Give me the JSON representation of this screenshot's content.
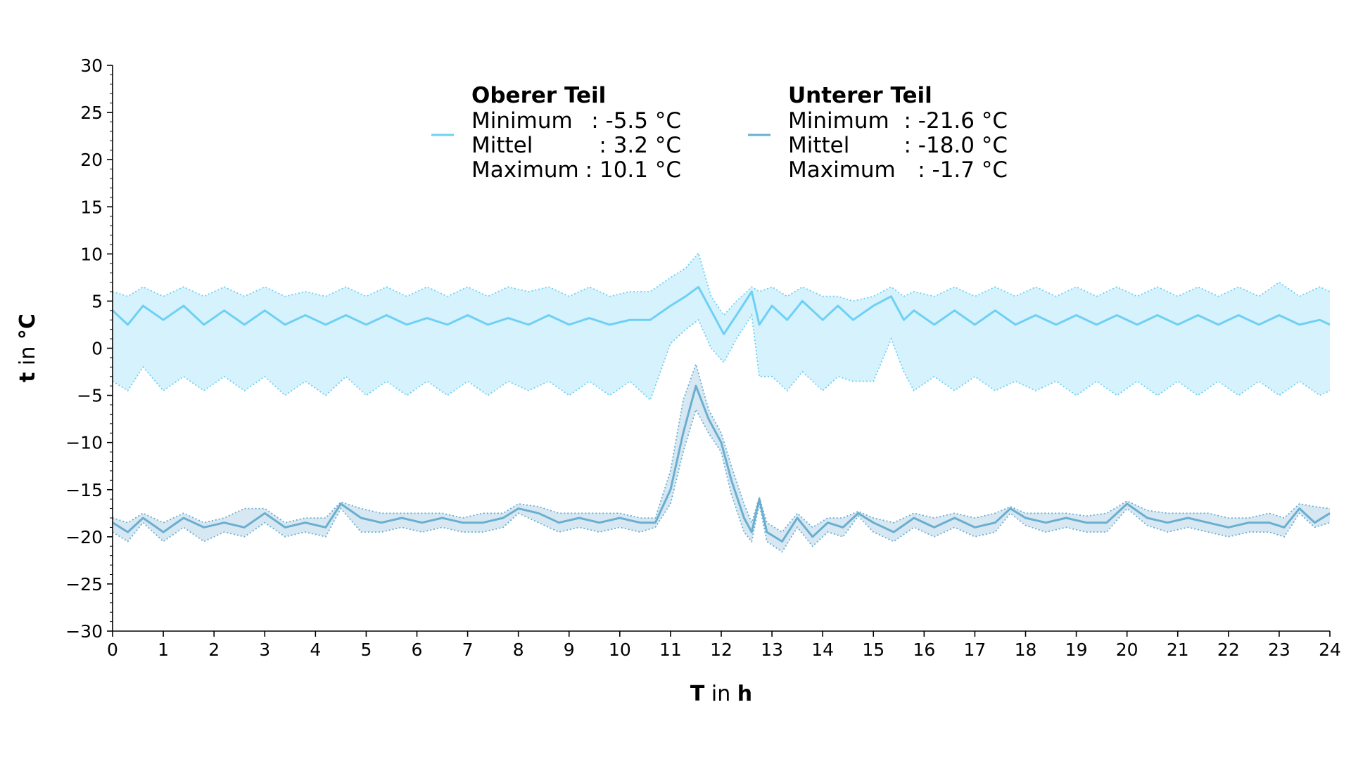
{
  "chart_data": {
    "type": "line",
    "xlabel_bold": "T",
    "xlabel_mid": " in ",
    "xlabel_unit": "h",
    "ylabel_bold": "t",
    "ylabel_mid": " in ",
    "ylabel_unit": "°C",
    "xlim": [
      0,
      24
    ],
    "ylim": [
      -30,
      30
    ],
    "x_ticks": [
      0,
      1,
      2,
      3,
      4,
      5,
      6,
      7,
      8,
      9,
      10,
      11,
      12,
      13,
      14,
      15,
      16,
      17,
      18,
      19,
      20,
      21,
      22,
      23,
      24
    ],
    "y_ticks": [
      30,
      25,
      20,
      15,
      10,
      5,
      0,
      -5,
      -10,
      -15,
      -20,
      -25,
      -30
    ],
    "y_tick_labels": [
      "30",
      "25",
      "20",
      "15",
      "10",
      "5",
      "0",
      "−5",
      "−10",
      "−15",
      "−20",
      "−25",
      "−30"
    ],
    "grid": false,
    "legend_placement": "top-center",
    "series": [
      {
        "name": "Oberer Teil",
        "color": "#6ed0f5",
        "band_color": "#d6f2fc",
        "stats": [
          {
            "label": "Minimum",
            "value": ": -5.5 °C"
          },
          {
            "label": "Mittel",
            "value": ": 3.2 °C"
          },
          {
            "label": "Maximum",
            "value": ": 10.1 °C"
          }
        ],
        "x": [
          0,
          0.3,
          0.6,
          1.0,
          1.4,
          1.8,
          2.2,
          2.6,
          3.0,
          3.4,
          3.8,
          4.2,
          4.6,
          5.0,
          5.4,
          5.8,
          6.2,
          6.6,
          7.0,
          7.4,
          7.8,
          8.2,
          8.6,
          9.0,
          9.4,
          9.8,
          10.2,
          10.6,
          11.0,
          11.3,
          11.55,
          11.8,
          12.05,
          12.3,
          12.6,
          12.75,
          13.0,
          13.3,
          13.6,
          14.0,
          14.3,
          14.6,
          15.0,
          15.35,
          15.6,
          15.8,
          16.2,
          16.6,
          17.0,
          17.4,
          17.8,
          18.2,
          18.6,
          19.0,
          19.4,
          19.8,
          20.2,
          20.6,
          21.0,
          21.4,
          21.8,
          22.2,
          22.6,
          23.0,
          23.4,
          23.8,
          24.0
        ],
        "mean": [
          4.0,
          2.5,
          4.5,
          3.0,
          4.5,
          2.5,
          4.0,
          2.5,
          4.0,
          2.5,
          3.5,
          2.5,
          3.5,
          2.5,
          3.5,
          2.5,
          3.2,
          2.5,
          3.5,
          2.5,
          3.2,
          2.5,
          3.5,
          2.5,
          3.2,
          2.5,
          3.0,
          3.0,
          4.5,
          5.5,
          6.5,
          4.0,
          1.5,
          3.5,
          6.0,
          2.5,
          4.5,
          3.0,
          5.0,
          3.0,
          4.5,
          3.0,
          4.5,
          5.5,
          3.0,
          4.0,
          2.5,
          4.0,
          2.5,
          4.0,
          2.5,
          3.5,
          2.5,
          3.5,
          2.5,
          3.5,
          2.5,
          3.5,
          2.5,
          3.5,
          2.5,
          3.5,
          2.5,
          3.5,
          2.5,
          3.0,
          2.5
        ],
        "max": [
          6.0,
          5.5,
          6.5,
          5.5,
          6.5,
          5.5,
          6.5,
          5.5,
          6.5,
          5.5,
          6.0,
          5.5,
          6.5,
          5.5,
          6.5,
          5.5,
          6.5,
          5.5,
          6.5,
          5.5,
          6.5,
          6.0,
          6.5,
          5.5,
          6.5,
          5.5,
          6.0,
          6.0,
          7.5,
          8.5,
          10.1,
          5.5,
          3.5,
          5.0,
          6.5,
          6.0,
          6.5,
          5.5,
          6.5,
          5.5,
          5.5,
          5.0,
          5.5,
          6.5,
          5.5,
          6.0,
          5.5,
          6.5,
          5.5,
          6.5,
          5.5,
          6.5,
          5.5,
          6.5,
          5.5,
          6.5,
          5.5,
          6.5,
          5.5,
          6.5,
          5.5,
          6.5,
          5.5,
          7.0,
          5.5,
          6.5,
          6.0
        ],
        "min": [
          -3.5,
          -4.5,
          -2.0,
          -4.5,
          -3.0,
          -4.5,
          -3.0,
          -4.5,
          -3.0,
          -5.0,
          -3.5,
          -5.0,
          -3.0,
          -5.0,
          -3.5,
          -5.0,
          -3.5,
          -5.0,
          -3.5,
          -5.0,
          -3.5,
          -4.5,
          -3.5,
          -5.0,
          -3.5,
          -5.0,
          -3.5,
          -5.5,
          0.5,
          2.0,
          3.0,
          0.0,
          -1.5,
          1.0,
          3.5,
          -3.0,
          -3.0,
          -4.5,
          -2.5,
          -4.5,
          -3.0,
          -3.5,
          -3.5,
          1.0,
          -2.5,
          -4.5,
          -3.0,
          -4.5,
          -3.0,
          -4.5,
          -3.5,
          -4.5,
          -3.5,
          -5.0,
          -3.5,
          -5.0,
          -3.5,
          -5.0,
          -3.5,
          -5.0,
          -3.5,
          -5.0,
          -3.5,
          -5.0,
          -3.5,
          -5.0,
          -4.5
        ]
      },
      {
        "name": "Unterer Teil",
        "color": "#6aaed0",
        "band_color": "#d7e8f2",
        "stats": [
          {
            "label": "Minimum",
            "value": ": -21.6 °C"
          },
          {
            "label": "Mittel",
            "value": ": -18.0 °C"
          },
          {
            "label": "Maximum",
            "value": ": -1.7 °C"
          }
        ],
        "x": [
          0,
          0.3,
          0.6,
          1.0,
          1.4,
          1.8,
          2.2,
          2.6,
          3.0,
          3.4,
          3.8,
          4.2,
          4.5,
          4.9,
          5.3,
          5.7,
          6.1,
          6.5,
          6.9,
          7.3,
          7.7,
          8.0,
          8.4,
          8.8,
          9.2,
          9.6,
          10.0,
          10.4,
          10.7,
          11.0,
          11.25,
          11.5,
          11.75,
          12.0,
          12.2,
          12.45,
          12.6,
          12.75,
          12.9,
          13.2,
          13.5,
          13.8,
          14.1,
          14.4,
          14.7,
          15.0,
          15.4,
          15.8,
          16.2,
          16.6,
          17.0,
          17.4,
          17.7,
          18.0,
          18.4,
          18.8,
          19.2,
          19.6,
          20.0,
          20.4,
          20.8,
          21.2,
          21.6,
          22.0,
          22.4,
          22.8,
          23.1,
          23.4,
          23.7,
          24.0
        ],
        "mean": [
          -18.5,
          -19.5,
          -18.0,
          -19.5,
          -18.0,
          -19.0,
          -18.5,
          -19.0,
          -17.5,
          -19.0,
          -18.5,
          -19.0,
          -16.5,
          -18.0,
          -18.5,
          -18.0,
          -18.5,
          -18.0,
          -18.5,
          -18.5,
          -18.0,
          -17.0,
          -17.5,
          -18.5,
          -18.0,
          -18.5,
          -18.0,
          -18.5,
          -18.5,
          -15.0,
          -9.0,
          -4.0,
          -7.5,
          -10.0,
          -14.0,
          -18.0,
          -19.5,
          -16.0,
          -19.5,
          -20.5,
          -18.0,
          -20.0,
          -18.5,
          -19.0,
          -17.5,
          -18.5,
          -19.5,
          -18.0,
          -19.0,
          -18.0,
          -19.0,
          -18.5,
          -17.0,
          -18.0,
          -18.5,
          -18.0,
          -18.5,
          -18.5,
          -16.5,
          -18.0,
          -18.5,
          -18.0,
          -18.5,
          -19.0,
          -18.5,
          -18.5,
          -19.0,
          -17.0,
          -18.5,
          -17.5
        ],
        "max": [
          -18.0,
          -18.5,
          -17.5,
          -18.5,
          -17.5,
          -18.5,
          -18.0,
          -17.0,
          -17.0,
          -18.5,
          -18.0,
          -18.0,
          -16.3,
          -17.0,
          -17.5,
          -17.5,
          -17.5,
          -17.5,
          -18.0,
          -17.5,
          -17.5,
          -16.5,
          -16.8,
          -17.5,
          -17.5,
          -17.5,
          -17.5,
          -18.0,
          -18.0,
          -13.0,
          -5.5,
          -1.7,
          -6.5,
          -9.0,
          -12.5,
          -16.5,
          -18.5,
          -15.8,
          -18.5,
          -19.5,
          -17.5,
          -19.0,
          -18.0,
          -18.0,
          -17.3,
          -18.0,
          -18.5,
          -17.5,
          -18.0,
          -17.5,
          -18.0,
          -17.5,
          -16.8,
          -17.5,
          -17.5,
          -17.5,
          -17.8,
          -17.5,
          -16.2,
          -17.2,
          -17.5,
          -17.5,
          -17.5,
          -18.0,
          -18.0,
          -17.5,
          -18.0,
          -16.5,
          -16.8,
          -17.0
        ],
        "min": [
          -19.5,
          -20.5,
          -18.5,
          -20.5,
          -19.0,
          -20.5,
          -19.5,
          -20.0,
          -18.5,
          -20.0,
          -19.5,
          -20.0,
          -17.0,
          -19.5,
          -19.5,
          -19.0,
          -19.5,
          -19.0,
          -19.5,
          -19.5,
          -19.0,
          -17.5,
          -18.5,
          -19.5,
          -19.0,
          -19.5,
          -19.0,
          -19.5,
          -19.0,
          -16.5,
          -11.0,
          -6.5,
          -9.0,
          -11.0,
          -15.5,
          -19.5,
          -20.5,
          -16.5,
          -20.5,
          -21.6,
          -19.0,
          -21.0,
          -19.5,
          -20.0,
          -17.8,
          -19.5,
          -20.5,
          -19.0,
          -20.0,
          -19.0,
          -20.0,
          -19.5,
          -17.5,
          -18.8,
          -19.5,
          -19.0,
          -19.5,
          -19.5,
          -17.0,
          -18.8,
          -19.5,
          -19.0,
          -19.5,
          -20.0,
          -19.5,
          -19.5,
          -20.0,
          -17.5,
          -19.0,
          -18.5
        ]
      }
    ]
  }
}
